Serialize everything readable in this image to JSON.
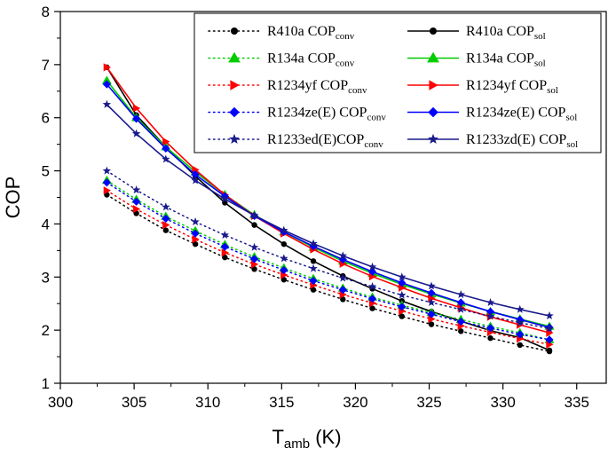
{
  "chart_data": {
    "type": "line",
    "xlabel": "T",
    "xlabel_sub": "amb",
    "xlabel_unit": " (K)",
    "ylabel": "COP",
    "xlim": [
      300,
      337
    ],
    "ylim": [
      1,
      8
    ],
    "xticks": [
      300,
      305,
      310,
      315,
      320,
      325,
      330,
      335
    ],
    "yticks": [
      1,
      2,
      3,
      4,
      5,
      6,
      7,
      8
    ],
    "x": [
      303.15,
      305.15,
      307.15,
      309.15,
      311.15,
      313.15,
      315.15,
      317.15,
      319.15,
      321.15,
      323.15,
      325.15,
      327.15,
      329.15,
      331.15,
      333.15
    ],
    "legend_position": "top-right",
    "series": [
      {
        "name": "R410a COP",
        "sub": "conv",
        "color": "#000000",
        "style": "dotted",
        "marker": "circle",
        "values": [
          4.55,
          4.2,
          3.88,
          3.62,
          3.37,
          3.15,
          2.95,
          2.76,
          2.58,
          2.41,
          2.26,
          2.11,
          1.98,
          1.85,
          1.72,
          1.6
        ]
      },
      {
        "name": "R410a COP",
        "sub": "sol",
        "color": "#000000",
        "style": "solid",
        "marker": "circle",
        "values": [
          6.95,
          6.05,
          5.45,
          4.9,
          4.4,
          3.98,
          3.62,
          3.3,
          3.02,
          2.78,
          2.55,
          2.35,
          2.17,
          1.99,
          1.86,
          1.62
        ]
      },
      {
        "name": "R134a COP",
        "sub": "conv",
        "color": "#00cc00",
        "style": "dotted",
        "marker": "triangle",
        "values": [
          4.82,
          4.46,
          4.14,
          3.87,
          3.61,
          3.38,
          3.17,
          2.97,
          2.79,
          2.62,
          2.47,
          2.33,
          2.2,
          2.07,
          1.95,
          1.82
        ]
      },
      {
        "name": "R134a COP",
        "sub": "sol",
        "color": "#00cc00",
        "style": "solid",
        "marker": "triangle",
        "values": [
          6.7,
          6.0,
          5.45,
          4.98,
          4.55,
          4.17,
          3.85,
          3.56,
          3.3,
          3.07,
          2.86,
          2.68,
          2.51,
          2.35,
          2.21,
          2.07
        ]
      },
      {
        "name": "R1234yf COP",
        "sub": "conv",
        "color": "#ff0000",
        "style": "dotted",
        "marker": "triangle-right",
        "values": [
          4.63,
          4.28,
          3.98,
          3.71,
          3.46,
          3.24,
          3.04,
          2.85,
          2.67,
          2.51,
          2.36,
          2.21,
          2.08,
          1.96,
          1.84,
          1.73
        ]
      },
      {
        "name": "R1234yf COP",
        "sub": "sol",
        "color": "#ff0000",
        "style": "solid",
        "marker": "triangle-right",
        "values": [
          6.95,
          6.18,
          5.55,
          5.02,
          4.55,
          4.15,
          3.82,
          3.52,
          3.25,
          3.01,
          2.8,
          2.6,
          2.42,
          2.25,
          2.1,
          1.95
        ]
      },
      {
        "name": "R1234ze(E) COP",
        "sub": "conv",
        "color": "#0000ff",
        "style": "dotted",
        "marker": "diamond",
        "values": [
          4.78,
          4.42,
          4.1,
          3.82,
          3.57,
          3.34,
          3.13,
          2.93,
          2.76,
          2.59,
          2.44,
          2.3,
          2.16,
          2.04,
          1.92,
          1.82
        ]
      },
      {
        "name": "R1234ze(E) COP",
        "sub": "sol",
        "color": "#0000ff",
        "style": "solid",
        "marker": "diamond",
        "values": [
          6.63,
          5.98,
          5.42,
          4.93,
          4.52,
          4.15,
          3.85,
          3.58,
          3.33,
          3.1,
          2.89,
          2.7,
          2.52,
          2.35,
          2.2,
          2.05
        ]
      },
      {
        "name": "R1233ed(E)COP",
        "sub": "conv",
        "color": "#1a1a8c",
        "style": "dotted",
        "marker": "star",
        "values": [
          5.0,
          4.64,
          4.32,
          4.04,
          3.79,
          3.56,
          3.35,
          3.16,
          2.98,
          2.82,
          2.66,
          2.52,
          2.39,
          2.26,
          2.14,
          2.03
        ]
      },
      {
        "name": "R1233zd(E) COP",
        "sub": "sol",
        "color": "#1a1a8c",
        "style": "solid",
        "marker": "star",
        "values": [
          6.25,
          5.7,
          5.22,
          4.82,
          4.47,
          4.16,
          3.88,
          3.63,
          3.4,
          3.19,
          3.0,
          2.83,
          2.67,
          2.52,
          2.39,
          2.27
        ]
      }
    ]
  }
}
